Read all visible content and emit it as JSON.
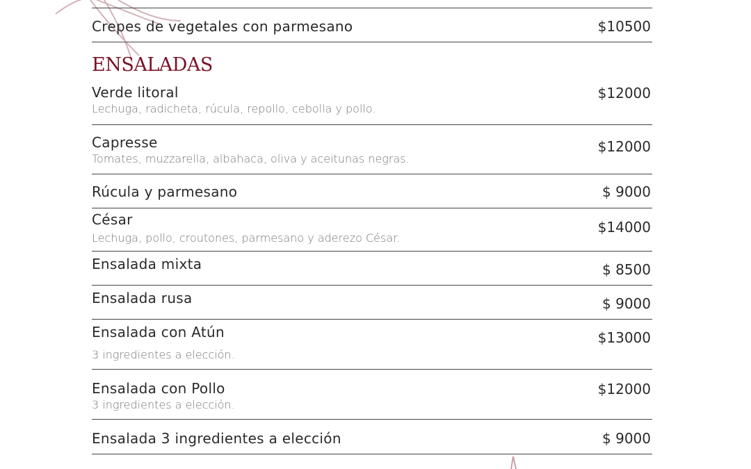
{
  "menu": {
    "prev_item": {
      "name": "Crepes de vegetales con parmesano",
      "price": "$10500"
    },
    "section_title": "ENSALADAS",
    "items": [
      {
        "name": "Verde litoral",
        "desc": "Lechuga, radicheta, rúcula, repollo, cebolla y pollo.",
        "price": "$12000"
      },
      {
        "name": "Capresse",
        "desc": "Tomates, muzzarella, albahaca, oliva y aceitunas negras.",
        "price": "$12000"
      },
      {
        "name": "Rúcula y parmesano",
        "price": "$ 9000"
      },
      {
        "name": "César",
        "desc": "Lechuga, pollo, croutones, parmesano y aderezo César.",
        "price": "$14000"
      },
      {
        "name": "Ensalada mixta",
        "price": "$ 8500"
      },
      {
        "name": "Ensalada rusa",
        "price": "$ 9000"
      },
      {
        "name": "Ensalada con Atún",
        "desc": "3 ingredientes a elección.",
        "price": "$13000"
      },
      {
        "name": "Ensalada con Pollo",
        "desc": "3 ingredientes a elección.",
        "price": "$12000"
      },
      {
        "name": "Ensalada 3 ingredientes a elección",
        "price": "$ 9000"
      }
    ]
  },
  "colors": {
    "accent": "#7a1428",
    "ornament": "#c9a0a8"
  }
}
